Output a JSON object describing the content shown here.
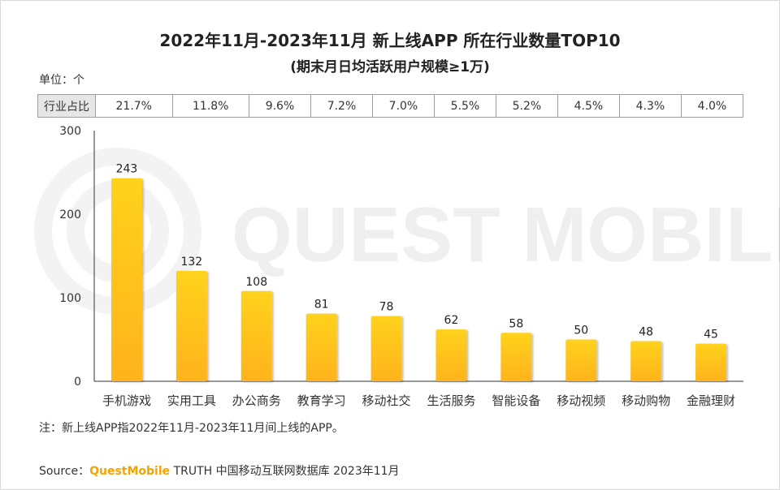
{
  "title": "2022年11月-2023年11月 新上线APP 所在行业数量TOP10",
  "subtitle": "(期末月日均活跃用户规模≥1万)",
  "unit_label": "单位：个",
  "share_row": {
    "header": "行业占比",
    "values": [
      "21.7%",
      "11.8%",
      "9.6%",
      "7.2%",
      "7.0%",
      "5.5%",
      "5.2%",
      "4.5%",
      "4.3%",
      "4.0%"
    ]
  },
  "watermark": "QUEST MOBILE",
  "colors": {
    "bar_top": "#ffd21f",
    "bar_bottom": "#ffb31a",
    "axis": "#333333",
    "brand": "#f5a300"
  },
  "chart_data": {
    "type": "bar",
    "categories": [
      "手机游戏",
      "实用工具",
      "办公商务",
      "教育学习",
      "移动社交",
      "生活服务",
      "智能设备",
      "移动视频",
      "移动购物",
      "金融理财"
    ],
    "values": [
      243,
      132,
      108,
      81,
      78,
      62,
      58,
      50,
      48,
      45
    ],
    "data_labels": [
      "243",
      "132",
      "108",
      "81",
      "78",
      "62",
      "58",
      "50",
      "48",
      "45"
    ],
    "ylim": [
      0,
      300
    ],
    "yticks": [
      0,
      100,
      200,
      300
    ],
    "ytick_labels": [
      "0",
      "100",
      "200",
      "300"
    ],
    "grid": false
  },
  "note": "注：新上线APP指2022年11月-2023年11月间上线的APP。",
  "source": {
    "label": "Source：",
    "brand": "QuestMobile",
    "rest": " TRUTH 中国移动互联网数据库 2023年11月"
  }
}
